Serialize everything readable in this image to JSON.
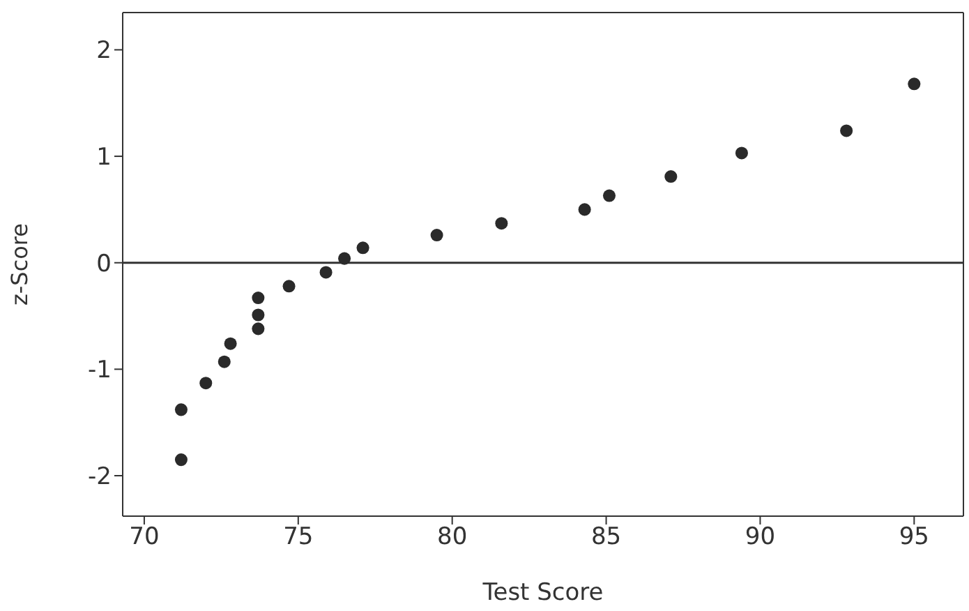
{
  "chart_data": {
    "type": "scatter",
    "xlabel": "Test Score",
    "ylabel": "z-Score",
    "x": [
      71.2,
      71.2,
      72.0,
      72.6,
      72.8,
      73.7,
      73.7,
      73.7,
      74.7,
      75.9,
      76.5,
      77.1,
      79.5,
      81.6,
      84.3,
      85.1,
      87.1,
      89.4,
      92.8,
      95.0
    ],
    "series": [
      {
        "color": "#2a2a2a",
        "values": [
          -1.85,
          -1.38,
          -1.13,
          -0.93,
          -0.76,
          -0.62,
          -0.49,
          -0.33,
          -0.22,
          -0.09,
          0.04,
          0.14,
          0.26,
          0.37,
          0.5,
          0.63,
          0.81,
          1.03,
          1.24,
          1.68
        ]
      }
    ],
    "xlim": [
      69.3,
      96.6
    ],
    "xticks": [
      70,
      75,
      80,
      85,
      90,
      95
    ],
    "ylim": [
      -2.38,
      2.35
    ],
    "yticks": [
      -2,
      -1,
      0,
      1,
      2
    ],
    "ref_lines": [
      {
        "axis": "y",
        "value": 0,
        "color": "#333333"
      }
    ],
    "grid": false,
    "marker": "circle"
  }
}
